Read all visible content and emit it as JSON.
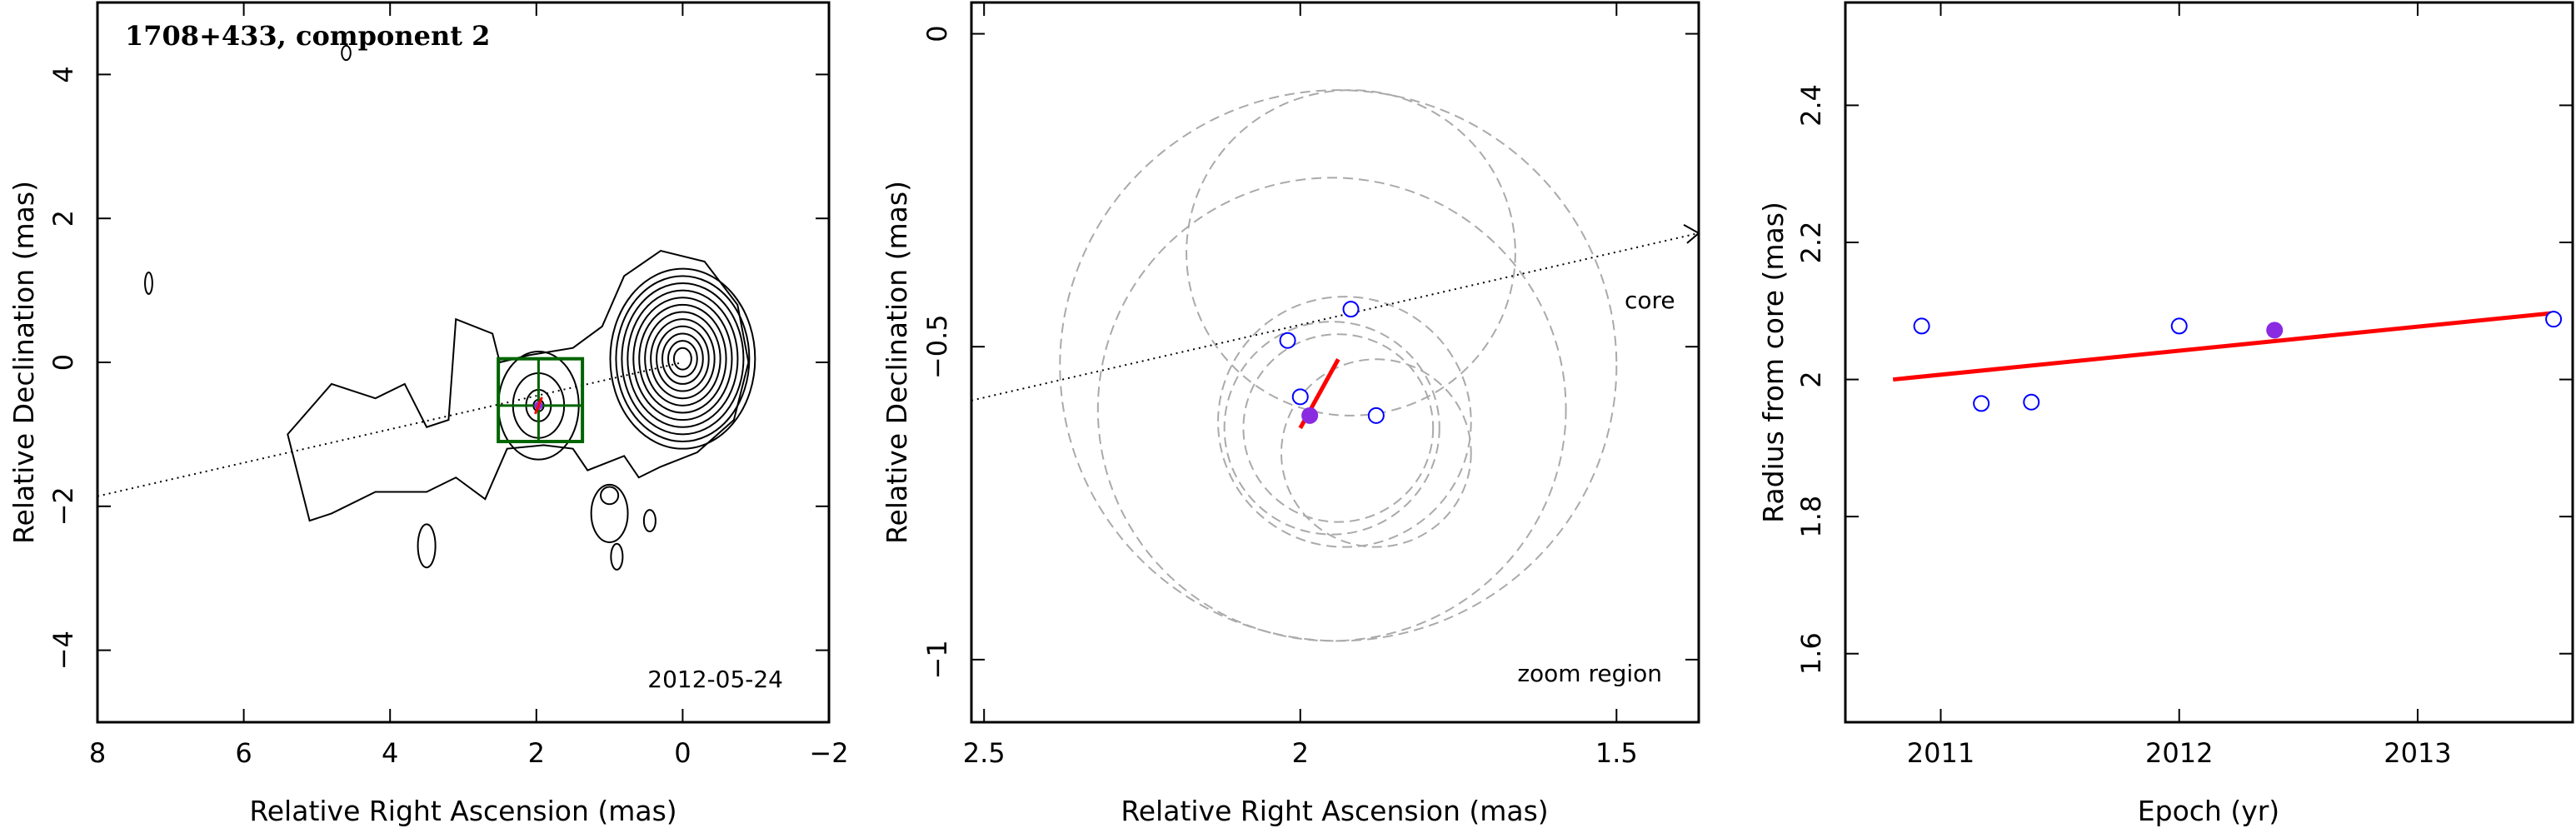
{
  "chart_data": [
    {
      "type": "contour",
      "title": "1708+433, component 2",
      "annotation": "2012-05-24",
      "xlabel": "Relative Right Ascension (mas)",
      "ylabel": "Relative Declination (mas)",
      "xlim": [
        8,
        -2
      ],
      "ylim": [
        -5,
        5
      ],
      "xticks": [
        8,
        6,
        4,
        2,
        0,
        -2
      ],
      "yticks": [
        -4,
        -2,
        0,
        2,
        4
      ],
      "core_contour_levels": 12,
      "component_position": {
        "x": 1.97,
        "y": -0.6
      },
      "zoom_region": {
        "x": [
          2.52,
          1.37
        ],
        "y": [
          -1.1,
          0.05
        ]
      },
      "jet_axis_slope": 0.2325,
      "colors": {
        "zoom_box": "#006400",
        "component": "#8a2be2",
        "contours": "#000000"
      }
    },
    {
      "type": "scatter",
      "annotation": "zoom region",
      "core_label": "core",
      "xlabel": "Relative Right Ascension (mas)",
      "ylabel": "Relative Declination (mas)",
      "xlim": [
        2.52,
        1.37
      ],
      "ylim": [
        -1.1,
        0.05
      ],
      "xticks": [
        2.5,
        2,
        1.5
      ],
      "yticks": [
        0,
        -0.5,
        -1
      ],
      "points": [
        {
          "x": 2.02,
          "y": -0.49
        },
        {
          "x": 1.92,
          "y": -0.44
        },
        {
          "x": 2.0,
          "y": -0.58
        },
        {
          "x": 1.88,
          "y": -0.61
        }
      ],
      "highlight_point": {
        "x": 1.985,
        "y": -0.61
      },
      "trajectory": {
        "x": [
          2.0,
          1.94
        ],
        "y": [
          -0.63,
          -0.52
        ]
      },
      "error_circles": [
        {
          "cx": 1.94,
          "cy": -0.53,
          "r": 0.44
        },
        {
          "cx": 1.95,
          "cy": -0.6,
          "r": 0.37
        },
        {
          "cx": 1.92,
          "cy": -0.35,
          "r": 0.26
        },
        {
          "cx": 1.93,
          "cy": -0.62,
          "r": 0.2
        },
        {
          "cx": 1.95,
          "cy": -0.63,
          "r": 0.17
        },
        {
          "cx": 1.94,
          "cy": -0.63,
          "r": 0.15
        },
        {
          "cx": 1.88,
          "cy": -0.67,
          "r": 0.15
        }
      ],
      "colors": {
        "points": "#0000ff",
        "highlight": "#8a2be2",
        "trajectory": "#ff0000",
        "circles": "#aaaaaa"
      }
    },
    {
      "type": "scatter",
      "xlabel": "Epoch (yr)",
      "ylabel": "Radius from core (mas)",
      "xlim": [
        2010.6,
        2013.65
      ],
      "ylim": [
        1.5,
        2.55
      ],
      "xticks": [
        2011,
        2012,
        2013
      ],
      "yticks": [
        1.6,
        1.8,
        2,
        2.2,
        2.4
      ],
      "points": [
        {
          "x": 2010.92,
          "y": 2.078
        },
        {
          "x": 2011.17,
          "y": 1.965
        },
        {
          "x": 2011.38,
          "y": 1.967
        },
        {
          "x": 2012.0,
          "y": 2.078
        },
        {
          "x": 2013.57,
          "y": 2.088
        }
      ],
      "highlight_point": {
        "x": 2012.4,
        "y": 2.072
      },
      "fit_line": {
        "x": [
          2010.8,
          2013.57
        ],
        "y": [
          2.0,
          2.097
        ]
      },
      "colors": {
        "points": "#0000ff",
        "highlight": "#8a2be2",
        "fit": "#ff0000"
      }
    }
  ]
}
